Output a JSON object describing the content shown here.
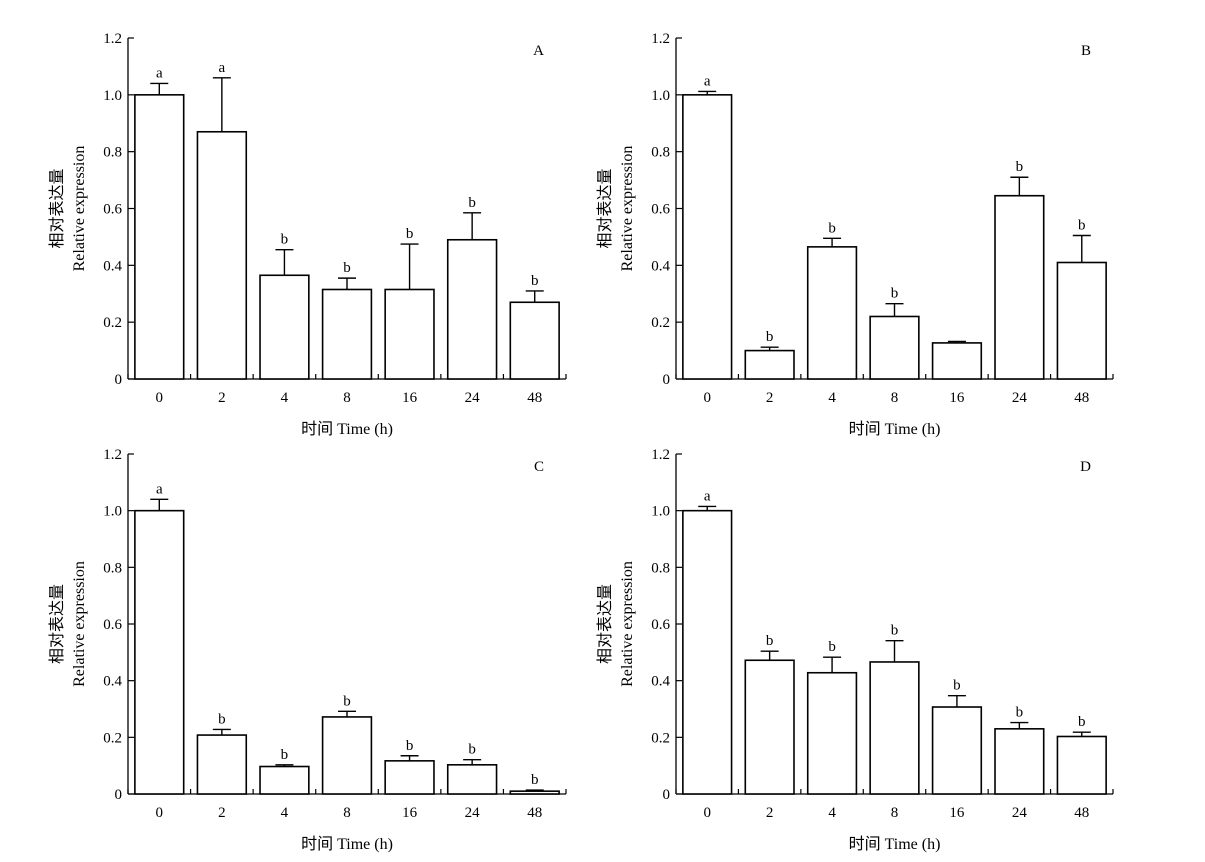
{
  "chart_data": [
    {
      "type": "bar",
      "panel_label": "A",
      "categories": [
        "0",
        "2",
        "4",
        "8",
        "16",
        "24",
        "48"
      ],
      "values": [
        1.0,
        0.87,
        0.365,
        0.315,
        0.315,
        0.49,
        0.27
      ],
      "error": [
        0.04,
        0.19,
        0.09,
        0.04,
        0.16,
        0.095,
        0.04
      ],
      "significance": [
        "a",
        "a",
        "b",
        "b",
        "b",
        "b",
        "b"
      ],
      "xlabel": "时间 Time (h)",
      "ylabel_cn": "相对表达量",
      "ylabel_en": "Relative expression",
      "ylim": [
        0,
        1.2
      ],
      "yticks": [
        "0",
        "0.2",
        "0.4",
        "0.6",
        "0.8",
        "1.0",
        "1.2"
      ]
    },
    {
      "type": "bar",
      "panel_label": "B",
      "categories": [
        "0",
        "2",
        "4",
        "8",
        "16",
        "24",
        "48"
      ],
      "values": [
        1.0,
        0.1,
        0.465,
        0.22,
        0.127,
        0.645,
        0.41
      ],
      "error": [
        0.012,
        0.012,
        0.03,
        0.045,
        0.005,
        0.065,
        0.095
      ],
      "significance": [
        "a",
        "b",
        "b",
        "b",
        "",
        "b",
        "b"
      ],
      "xlabel": "时间 Time (h)",
      "ylabel_cn": "相对表达量",
      "ylabel_en": "Relative expression",
      "ylim": [
        0,
        1.2
      ],
      "yticks": [
        "0",
        "0.2",
        "0.4",
        "0.6",
        "0.8",
        "1.0",
        "1.2"
      ]
    },
    {
      "type": "bar",
      "panel_label": "C",
      "categories": [
        "0",
        "2",
        "4",
        "8",
        "16",
        "24",
        "48"
      ],
      "values": [
        1.0,
        0.208,
        0.097,
        0.272,
        0.117,
        0.103,
        0.01
      ],
      "error": [
        0.04,
        0.02,
        0.006,
        0.02,
        0.018,
        0.018,
        0.004
      ],
      "significance": [
        "a",
        "b",
        "b",
        "b",
        "b",
        "b",
        "b"
      ],
      "xlabel": "时间 Time (h)",
      "ylabel_cn": "相对表达量",
      "ylabel_en": "Relative expression",
      "ylim": [
        0,
        1.2
      ],
      "yticks": [
        "0",
        "0.2",
        "0.4",
        "0.6",
        "0.8",
        "1.0",
        "1.2"
      ]
    },
    {
      "type": "bar",
      "panel_label": "D",
      "categories": [
        "0",
        "2",
        "4",
        "8",
        "16",
        "24",
        "48"
      ],
      "values": [
        1.0,
        0.472,
        0.428,
        0.466,
        0.307,
        0.23,
        0.203
      ],
      "error": [
        0.015,
        0.032,
        0.055,
        0.075,
        0.04,
        0.022,
        0.015
      ],
      "significance": [
        "a",
        "b",
        "b",
        "b",
        "b",
        "b",
        "b"
      ],
      "xlabel": "时间 Time (h)",
      "ylabel_cn": "相对表达量",
      "ylabel_en": "Relative expression",
      "ylim": [
        0,
        1.2
      ],
      "yticks": [
        "0",
        "0.2",
        "0.4",
        "0.6",
        "0.8",
        "1.0",
        "1.2"
      ]
    }
  ]
}
